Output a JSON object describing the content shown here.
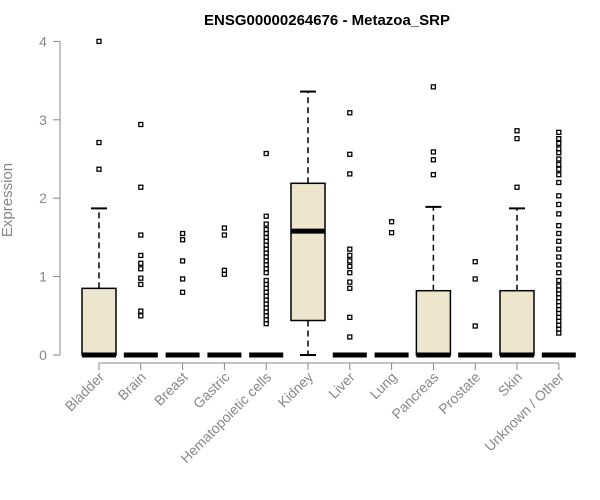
{
  "chart_data": {
    "type": "box",
    "title": "ENSG00000264676 - Metazoa_SRP",
    "ylabel": "Expression",
    "xlabel": "",
    "ylim": [
      0,
      4
    ],
    "yticks": [
      "0",
      "1",
      "2",
      "3",
      "4"
    ],
    "box_fill": "#ede6cd",
    "categories": [
      "Bladder",
      "Brain",
      "Breast",
      "Gastric",
      "Hematopoietic cells",
      "Kidney",
      "Liver",
      "Lung",
      "Pancreas",
      "Prostate",
      "Skin",
      "Unknown / Other"
    ],
    "series": [
      {
        "q1": 0,
        "median": 0,
        "q3": 0.85,
        "whisker_low": 0,
        "whisker_high": 1.87,
        "outliers": [
          2.37,
          2.71,
          4.0
        ]
      },
      {
        "q1": 0,
        "median": 0,
        "q3": 0,
        "whisker_low": 0,
        "whisker_high": 0,
        "outliers": [
          0.5,
          0.56,
          0.9,
          0.98,
          1.1,
          1.17,
          1.27,
          1.53,
          2.14,
          2.94
        ]
      },
      {
        "q1": 0,
        "median": 0,
        "q3": 0,
        "whisker_low": 0,
        "whisker_high": 0,
        "outliers": [
          0.8,
          0.97,
          1.2,
          1.47,
          1.55
        ]
      },
      {
        "q1": 0,
        "median": 0,
        "q3": 0,
        "whisker_low": 0,
        "whisker_high": 0,
        "outliers": [
          1.03,
          1.08,
          1.53,
          1.62
        ]
      },
      {
        "q1": 0,
        "median": 0,
        "q3": 0,
        "whisker_low": 0,
        "whisker_high": 0,
        "outliers": [
          0.4,
          0.45,
          0.5,
          0.55,
          0.6,
          0.65,
          0.7,
          0.75,
          0.8,
          0.85,
          0.9,
          0.95,
          1.05,
          1.1,
          1.15,
          1.2,
          1.25,
          1.3,
          1.35,
          1.4,
          1.45,
          1.5,
          1.55,
          1.6,
          1.67,
          1.77,
          2.57
        ]
      },
      {
        "q1": 0.44,
        "median": 1.58,
        "q3": 2.19,
        "whisker_low": 0,
        "whisker_high": 3.36,
        "outliers": []
      },
      {
        "q1": 0,
        "median": 0,
        "q3": 0,
        "whisker_low": 0,
        "whisker_high": 0,
        "outliers": [
          0.23,
          0.48,
          0.85,
          0.93,
          1.05,
          1.13,
          1.2,
          1.27,
          1.35,
          2.31,
          2.56,
          3.09
        ]
      },
      {
        "q1": 0,
        "median": 0,
        "q3": 0,
        "whisker_low": 0,
        "whisker_high": 0,
        "outliers": [
          1.56,
          1.7
        ]
      },
      {
        "q1": 0,
        "median": 0,
        "q3": 0.82,
        "whisker_low": 0,
        "whisker_high": 1.89,
        "outliers": [
          2.3,
          2.49,
          2.59,
          3.42
        ]
      },
      {
        "q1": 0,
        "median": 0,
        "q3": 0,
        "whisker_low": 0,
        "whisker_high": 0,
        "outliers": [
          0.37,
          0.97,
          1.19
        ]
      },
      {
        "q1": 0,
        "median": 0,
        "q3": 0.82,
        "whisker_low": 0,
        "whisker_high": 1.87,
        "outliers": [
          2.14,
          2.76,
          2.86
        ]
      },
      {
        "q1": 0,
        "median": 0,
        "q3": 0,
        "whisker_low": 0,
        "whisker_high": 0,
        "outliers": [
          0.28,
          0.33,
          0.38,
          0.43,
          0.48,
          0.53,
          0.58,
          0.63,
          0.68,
          0.73,
          0.78,
          0.83,
          0.88,
          0.95,
          1.05,
          1.15,
          1.25,
          1.35,
          1.45,
          1.55,
          1.65,
          1.8,
          1.92,
          2.03,
          2.2,
          2.3,
          2.37,
          2.43,
          2.5,
          2.58,
          2.63,
          2.7,
          2.76,
          2.84
        ]
      }
    ]
  }
}
